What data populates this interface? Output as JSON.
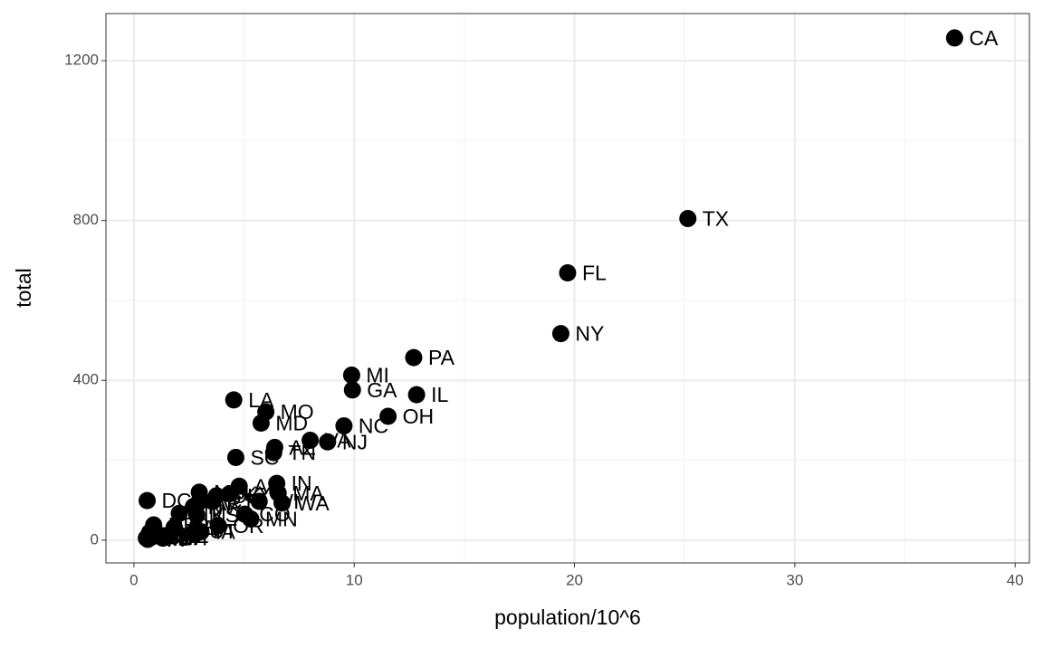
{
  "chart_data": {
    "type": "scatter",
    "xlabel": "population/10^6",
    "ylabel": "total",
    "color": "#000000",
    "labels": [
      "AL",
      "AK",
      "AZ",
      "AR",
      "CA",
      "CO",
      "CT",
      "DE",
      "DC",
      "FL",
      "GA",
      "HI",
      "ID",
      "IL",
      "IN",
      "IA",
      "KS",
      "KY",
      "LA",
      "ME",
      "MD",
      "MA",
      "MI",
      "MN",
      "MS",
      "MO",
      "MT",
      "NE",
      "NV",
      "NH",
      "NJ",
      "NM",
      "NY",
      "NC",
      "ND",
      "OH",
      "OK",
      "OR",
      "PA",
      "RI",
      "SC",
      "SD",
      "TN",
      "TX",
      "UT",
      "VT",
      "VA",
      "WA",
      "WV",
      "WI",
      "WY"
    ],
    "x": [
      4.78,
      0.71,
      6.392,
      2.916,
      37.254,
      5.029,
      3.574,
      0.898,
      0.602,
      19.688,
      9.92,
      1.36,
      1.568,
      12.831,
      6.484,
      3.046,
      2.853,
      4.339,
      4.533,
      1.328,
      5.774,
      6.548,
      9.884,
      5.304,
      2.967,
      5.989,
      0.989,
      1.826,
      2.701,
      1.316,
      8.792,
      2.059,
      19.378,
      9.535,
      0.673,
      11.537,
      3.751,
      3.831,
      12.702,
      1.053,
      4.625,
      0.814,
      6.346,
      25.146,
      2.764,
      0.626,
      8.001,
      6.725,
      1.853,
      5.687,
      0.564
    ],
    "values": [
      135,
      19,
      232,
      93,
      1257,
      65,
      97,
      38,
      99,
      669,
      376,
      7,
      12,
      364,
      142,
      21,
      63,
      116,
      351,
      11,
      293,
      118,
      413,
      53,
      120,
      321,
      12,
      32,
      84,
      5,
      246,
      67,
      517,
      286,
      4,
      310,
      111,
      36,
      457,
      16,
      207,
      8,
      219,
      805,
      22,
      2,
      250,
      93,
      27,
      97,
      5
    ],
    "xlim": [
      -1.27,
      40.65
    ],
    "ylim": [
      -57,
      1318
    ],
    "xticks": [
      0,
      10,
      20,
      30,
      40
    ],
    "yticks": [
      0,
      400,
      800,
      1200
    ],
    "xminorticks": [
      5,
      15,
      25,
      35
    ],
    "yminorticks": [
      200,
      600,
      1000
    ],
    "grid": true
  }
}
